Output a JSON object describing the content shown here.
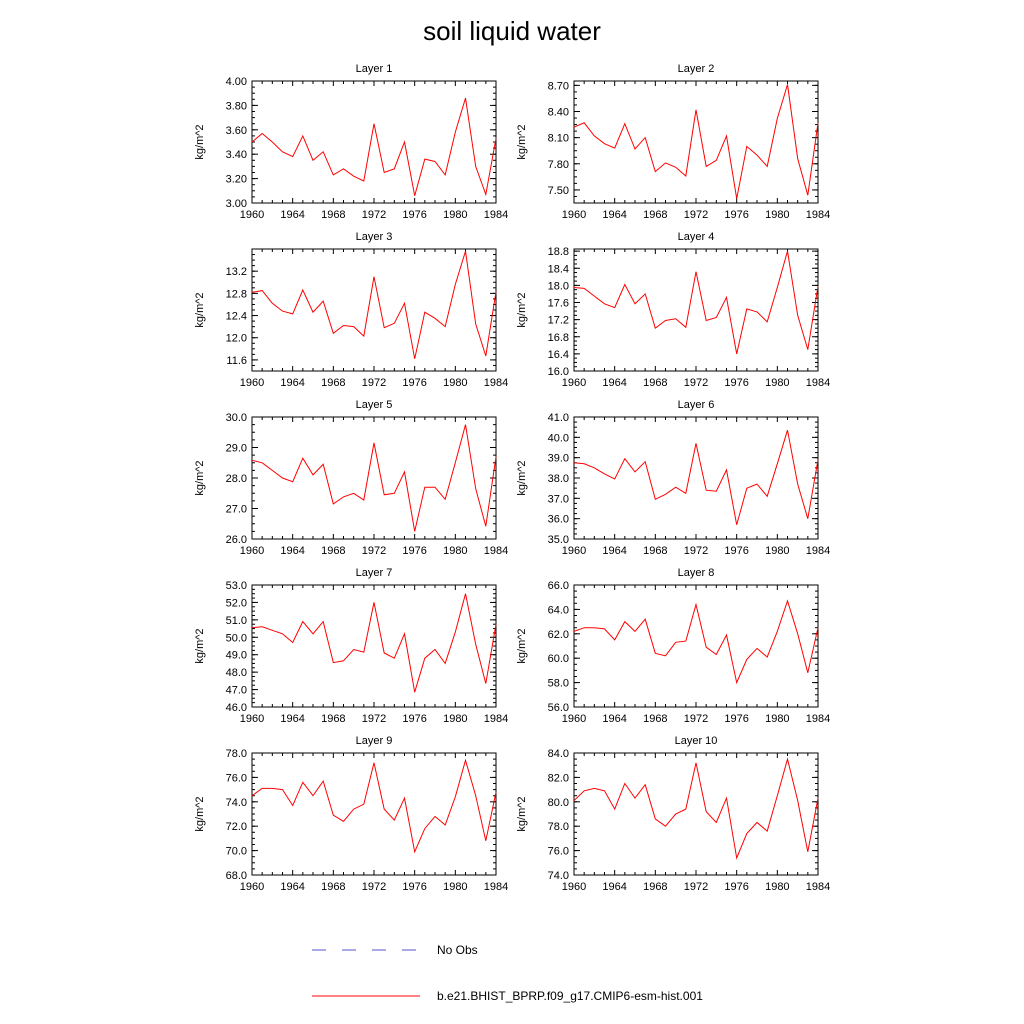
{
  "title": "soil liquid water",
  "colors": {
    "model": "#ff0000",
    "obs": "#5555cc",
    "axis": "#000000"
  },
  "legend": [
    {
      "style": "dashed",
      "label": "No Obs"
    },
    {
      "style": "solid",
      "label": "b.e21.BHIST_BPRP.f09_g17.CMIP6-esm-hist.001"
    }
  ],
  "chart_data": [
    {
      "type": "line",
      "title": "Layer 1",
      "ylabel": "kg/m^2",
      "xlabel": "",
      "xlim": [
        1960,
        1984
      ],
      "ylim": [
        3.0,
        4.0
      ],
      "xticks": [
        "1960",
        "1964",
        "1968",
        "1972",
        "1976",
        "1980",
        "1984"
      ],
      "yticks": [
        "3.00",
        "3.20",
        "3.40",
        "3.60",
        "3.80",
        "4.00"
      ],
      "x": [
        1960,
        1961,
        1962,
        1963,
        1964,
        1965,
        1966,
        1967,
        1968,
        1969,
        1970,
        1971,
        1972,
        1973,
        1974,
        1975,
        1976,
        1977,
        1978,
        1979,
        1980,
        1981,
        1982,
        1983,
        1984
      ],
      "series": [
        {
          "name": "b.e21.BHIST_BPRP.f09_g17.CMIP6-esm-hist.001",
          "values": [
            3.5,
            3.57,
            3.5,
            3.42,
            3.38,
            3.55,
            3.35,
            3.42,
            3.23,
            3.28,
            3.22,
            3.18,
            3.65,
            3.25,
            3.28,
            3.5,
            3.06,
            3.36,
            3.34,
            3.23,
            3.58,
            3.86,
            3.3,
            3.07,
            3.53
          ]
        }
      ]
    },
    {
      "type": "line",
      "title": "Layer 2",
      "ylabel": "kg/m^2",
      "xlabel": "",
      "xlim": [
        1960,
        1984
      ],
      "ylim": [
        7.35,
        8.75
      ],
      "xticks": [
        "1960",
        "1964",
        "1968",
        "1972",
        "1976",
        "1980",
        "1984"
      ],
      "yticks": [
        "7.50",
        "7.80",
        "8.10",
        "8.40",
        "8.70"
      ],
      "x": [
        1960,
        1961,
        1962,
        1963,
        1964,
        1965,
        1966,
        1967,
        1968,
        1969,
        1970,
        1971,
        1972,
        1973,
        1974,
        1975,
        1976,
        1977,
        1978,
        1979,
        1980,
        1981,
        1982,
        1983,
        1984
      ],
      "series": [
        {
          "name": "b.e21.BHIST_BPRP.f09_g17.CMIP6-esm-hist.001",
          "values": [
            8.22,
            8.27,
            8.12,
            8.03,
            7.98,
            8.26,
            7.97,
            8.1,
            7.71,
            7.81,
            7.76,
            7.66,
            8.42,
            7.77,
            7.84,
            8.12,
            7.4,
            8.0,
            7.9,
            7.77,
            8.32,
            8.71,
            7.86,
            7.44,
            8.27
          ]
        }
      ]
    },
    {
      "type": "line",
      "title": "Layer 3",
      "ylabel": "kg/m^2",
      "xlabel": "",
      "xlim": [
        1960,
        1984
      ],
      "ylim": [
        11.4,
        13.6
      ],
      "xticks": [
        "1960",
        "1964",
        "1968",
        "1972",
        "1976",
        "1980",
        "1984"
      ],
      "yticks": [
        "11.6",
        "12.0",
        "12.4",
        "12.8",
        "13.2"
      ],
      "x": [
        1960,
        1961,
        1962,
        1963,
        1964,
        1965,
        1966,
        1967,
        1968,
        1969,
        1970,
        1971,
        1972,
        1973,
        1974,
        1975,
        1976,
        1977,
        1978,
        1979,
        1980,
        1981,
        1982,
        1983,
        1984
      ],
      "series": [
        {
          "name": "b.e21.BHIST_BPRP.f09_g17.CMIP6-esm-hist.001",
          "values": [
            12.82,
            12.85,
            12.62,
            12.48,
            12.43,
            12.86,
            12.46,
            12.66,
            12.08,
            12.22,
            12.2,
            12.03,
            13.1,
            12.18,
            12.26,
            12.62,
            11.62,
            12.46,
            12.35,
            12.2,
            12.96,
            13.56,
            12.25,
            11.67,
            12.83
          ]
        }
      ]
    },
    {
      "type": "line",
      "title": "Layer 4",
      "ylabel": "kg/m^2",
      "xlabel": "",
      "xlim": [
        1960,
        1984
      ],
      "ylim": [
        16.0,
        18.85
      ],
      "xticks": [
        "1960",
        "1964",
        "1968",
        "1972",
        "1976",
        "1980",
        "1984"
      ],
      "yticks": [
        "16.0",
        "16.4",
        "16.8",
        "17.2",
        "17.6",
        "18.0",
        "18.4",
        "18.8"
      ],
      "x": [
        1960,
        1961,
        1962,
        1963,
        1964,
        1965,
        1966,
        1967,
        1968,
        1969,
        1970,
        1971,
        1972,
        1973,
        1974,
        1975,
        1976,
        1977,
        1978,
        1979,
        1980,
        1981,
        1982,
        1983,
        1984
      ],
      "series": [
        {
          "name": "b.e21.BHIST_BPRP.f09_g17.CMIP6-esm-hist.001",
          "values": [
            17.95,
            17.93,
            17.75,
            17.57,
            17.48,
            18.02,
            17.57,
            17.8,
            17.0,
            17.18,
            17.22,
            17.02,
            18.32,
            17.18,
            17.25,
            17.72,
            16.4,
            17.45,
            17.38,
            17.15,
            17.95,
            18.8,
            17.3,
            16.5,
            17.98
          ]
        }
      ]
    },
    {
      "type": "line",
      "title": "Layer 5",
      "ylabel": "kg/m^2",
      "xlabel": "",
      "xlim": [
        1960,
        1984
      ],
      "ylim": [
        26.0,
        30.0
      ],
      "xticks": [
        "1960",
        "1964",
        "1968",
        "1972",
        "1976",
        "1980",
        "1984"
      ],
      "yticks": [
        "26.0",
        "27.0",
        "28.0",
        "29.0",
        "30.0"
      ],
      "x": [
        1960,
        1961,
        1962,
        1963,
        1964,
        1965,
        1966,
        1967,
        1968,
        1969,
        1970,
        1971,
        1972,
        1973,
        1974,
        1975,
        1976,
        1977,
        1978,
        1979,
        1980,
        1981,
        1982,
        1983,
        1984
      ],
      "series": [
        {
          "name": "b.e21.BHIST_BPRP.f09_g17.CMIP6-esm-hist.001",
          "values": [
            28.58,
            28.5,
            28.25,
            28.0,
            27.88,
            28.65,
            28.1,
            28.45,
            27.15,
            27.38,
            27.5,
            27.28,
            29.15,
            27.45,
            27.5,
            28.2,
            26.25,
            27.7,
            27.7,
            27.3,
            28.5,
            29.75,
            27.65,
            26.42,
            28.7
          ]
        }
      ]
    },
    {
      "type": "line",
      "title": "Layer 6",
      "ylabel": "kg/m^2",
      "xlabel": "",
      "xlim": [
        1960,
        1984
      ],
      "ylim": [
        35.0,
        41.0
      ],
      "xticks": [
        "1960",
        "1964",
        "1968",
        "1972",
        "1976",
        "1980",
        "1984"
      ],
      "yticks": [
        "35.0",
        "36.0",
        "37.0",
        "38.0",
        "39.0",
        "40.0",
        "41.0"
      ],
      "x": [
        1960,
        1961,
        1962,
        1963,
        1964,
        1965,
        1966,
        1967,
        1968,
        1969,
        1970,
        1971,
        1972,
        1973,
        1974,
        1975,
        1976,
        1977,
        1978,
        1979,
        1980,
        1981,
        1982,
        1983,
        1984
      ],
      "series": [
        {
          "name": "b.e21.BHIST_BPRP.f09_g17.CMIP6-esm-hist.001",
          "values": [
            38.75,
            38.7,
            38.5,
            38.2,
            37.95,
            38.95,
            38.3,
            38.8,
            36.95,
            37.2,
            37.55,
            37.25,
            39.7,
            37.4,
            37.35,
            38.4,
            35.7,
            37.5,
            37.7,
            37.1,
            38.7,
            40.35,
            37.7,
            36.0,
            38.9
          ]
        }
      ]
    },
    {
      "type": "line",
      "title": "Layer 7",
      "ylabel": "kg/m^2",
      "xlabel": "",
      "xlim": [
        1960,
        1984
      ],
      "ylim": [
        46.0,
        53.0
      ],
      "xticks": [
        "1960",
        "1964",
        "1968",
        "1972",
        "1976",
        "1980",
        "1984"
      ],
      "yticks": [
        "46.0",
        "47.0",
        "48.0",
        "49.0",
        "50.0",
        "51.0",
        "52.0",
        "53.0"
      ],
      "x": [
        1960,
        1961,
        1962,
        1963,
        1964,
        1965,
        1966,
        1967,
        1968,
        1969,
        1970,
        1971,
        1972,
        1973,
        1974,
        1975,
        1976,
        1977,
        1978,
        1979,
        1980,
        1981,
        1982,
        1983,
        1984
      ],
      "series": [
        {
          "name": "b.e21.BHIST_BPRP.f09_g17.CMIP6-esm-hist.001",
          "values": [
            50.55,
            50.6,
            50.4,
            50.2,
            49.7,
            50.9,
            50.2,
            50.9,
            48.55,
            48.65,
            49.3,
            49.15,
            52.0,
            49.1,
            48.8,
            50.2,
            46.85,
            48.8,
            49.3,
            48.5,
            50.3,
            52.5,
            49.6,
            47.35,
            50.75
          ]
        }
      ]
    },
    {
      "type": "line",
      "title": "Layer 8",
      "ylabel": "kg/m^2",
      "xlabel": "",
      "xlim": [
        1960,
        1984
      ],
      "ylim": [
        56.0,
        66.0
      ],
      "xticks": [
        "1960",
        "1964",
        "1968",
        "1972",
        "1976",
        "1980",
        "1984"
      ],
      "yticks": [
        "56.0",
        "58.0",
        "60.0",
        "62.0",
        "64.0",
        "66.0"
      ],
      "x": [
        1960,
        1961,
        1962,
        1963,
        1964,
        1965,
        1966,
        1967,
        1968,
        1969,
        1970,
        1971,
        1972,
        1973,
        1974,
        1975,
        1976,
        1977,
        1978,
        1979,
        1980,
        1981,
        1982,
        1983,
        1984
      ],
      "series": [
        {
          "name": "b.e21.BHIST_BPRP.f09_g17.CMIP6-esm-hist.001",
          "values": [
            62.2,
            62.5,
            62.5,
            62.4,
            61.5,
            63.0,
            62.2,
            63.2,
            60.4,
            60.2,
            61.3,
            61.4,
            64.4,
            60.9,
            60.3,
            61.9,
            58.0,
            59.9,
            60.8,
            60.1,
            62.2,
            64.7,
            62.0,
            58.8,
            62.5
          ]
        }
      ]
    },
    {
      "type": "line",
      "title": "Layer 9",
      "ylabel": "kg/m^2",
      "xlabel": "",
      "xlim": [
        1960,
        1984
      ],
      "ylim": [
        68.0,
        78.0
      ],
      "xticks": [
        "1960",
        "1964",
        "1968",
        "1972",
        "1976",
        "1980",
        "1984"
      ],
      "yticks": [
        "68.0",
        "70.0",
        "72.0",
        "74.0",
        "76.0",
        "78.0"
      ],
      "x": [
        1960,
        1961,
        1962,
        1963,
        1964,
        1965,
        1966,
        1967,
        1968,
        1969,
        1970,
        1971,
        1972,
        1973,
        1974,
        1975,
        1976,
        1977,
        1978,
        1979,
        1980,
        1981,
        1982,
        1983,
        1984
      ],
      "series": [
        {
          "name": "b.e21.BHIST_BPRP.f09_g17.CMIP6-esm-hist.001",
          "values": [
            74.5,
            75.1,
            75.1,
            75.0,
            73.7,
            75.6,
            74.5,
            75.7,
            72.9,
            72.4,
            73.4,
            73.8,
            77.2,
            73.4,
            72.5,
            74.3,
            69.9,
            71.8,
            72.8,
            72.1,
            74.4,
            77.4,
            74.5,
            70.8,
            74.8
          ]
        }
      ]
    },
    {
      "type": "line",
      "title": "Layer 10",
      "ylabel": "kg/m^2",
      "xlabel": "",
      "xlim": [
        1960,
        1984
      ],
      "ylim": [
        74.0,
        84.0
      ],
      "xticks": [
        "1960",
        "1964",
        "1968",
        "1972",
        "1976",
        "1980",
        "1984"
      ],
      "yticks": [
        "74.0",
        "76.0",
        "78.0",
        "80.0",
        "82.0",
        "84.0"
      ],
      "x": [
        1960,
        1961,
        1962,
        1963,
        1964,
        1965,
        1966,
        1967,
        1968,
        1969,
        1970,
        1971,
        1972,
        1973,
        1974,
        1975,
        1976,
        1977,
        1978,
        1979,
        1980,
        1981,
        1982,
        1983,
        1984
      ],
      "series": [
        {
          "name": "b.e21.BHIST_BPRP.f09_g17.CMIP6-esm-hist.001",
          "values": [
            80.1,
            80.9,
            81.1,
            80.9,
            79.4,
            81.5,
            80.3,
            81.4,
            78.6,
            78.0,
            79.0,
            79.4,
            83.2,
            79.2,
            78.3,
            80.3,
            75.4,
            77.4,
            78.3,
            77.6,
            80.5,
            83.5,
            80.1,
            75.9,
            80.3
          ]
        }
      ]
    }
  ]
}
